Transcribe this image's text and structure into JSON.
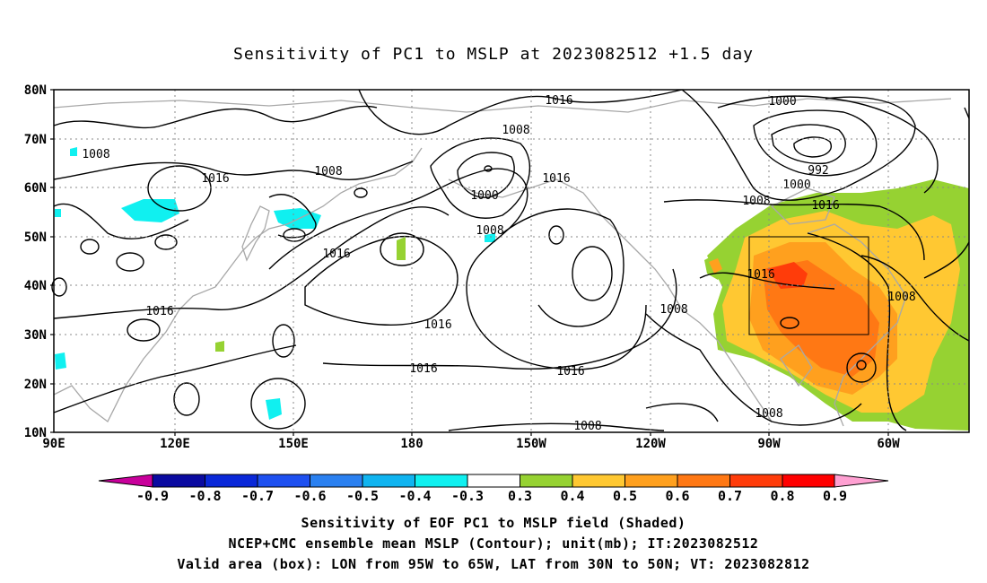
{
  "title": "Sensitivity of PC1 to MSLP at 2023082512 +1.5 day",
  "map": {
    "lon_labels": [
      "90E",
      "120E",
      "150E",
      "180",
      "150W",
      "120W",
      "90W",
      "60W"
    ],
    "lat_labels": [
      "80N",
      "70N",
      "60N",
      "50N",
      "40N",
      "30N",
      "20N",
      "10N"
    ],
    "contour_labels": [
      "1016",
      "1000",
      "1008",
      "1008",
      "1016",
      "1008",
      "1016",
      "1000",
      "992",
      "1000",
      "1008",
      "1016",
      "1008",
      "1016",
      "1016",
      "1008",
      "1016",
      "1016",
      "1016",
      "1016",
      "1008",
      "1008",
      "1008"
    ],
    "valid_box": {
      "lon_from": "95W",
      "lon_to": "65W",
      "lat_from": "30N",
      "lat_to": "50N"
    }
  },
  "colorbar": {
    "labels": [
      "-0.9",
      "-0.8",
      "-0.7",
      "-0.6",
      "-0.5",
      "-0.4",
      "-0.3",
      "0.3",
      "0.4",
      "0.5",
      "0.6",
      "0.7",
      "0.8",
      "0.9"
    ],
    "colors": [
      "#0a0aa0",
      "#0a28d8",
      "#1e50f0",
      "#2a80f0",
      "#10b4f0",
      "#10f0f0",
      "#ffffff",
      "#96d232",
      "#ffc832",
      "#ffa01e",
      "#ff7814",
      "#ff3c0a",
      "#ff0000"
    ],
    "low_end_color": "#c8009b",
    "high_end_color": "#ffa0d2"
  },
  "captions": {
    "line1": "Sensitivity of EOF PC1 to MSLP field (Shaded)",
    "line2": "NCEP+CMC ensemble mean MSLP (Contour); unit(mb); IT:2023082512",
    "line3": "Valid area (box): LON from 95W to 65W, LAT from 30N to 50N; VT: 2023082812"
  }
}
